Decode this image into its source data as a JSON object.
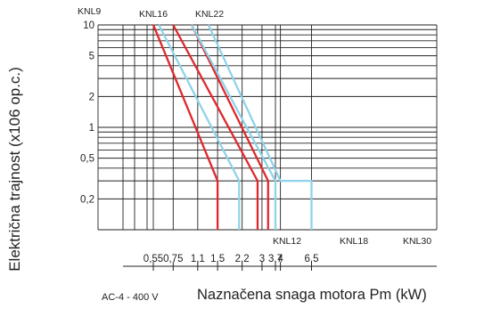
{
  "chart_data": {
    "type": "line",
    "xlabel": "Naznačena snaga motora Pm (kW)",
    "ylabel": "Električna trajnost (x106 op.c.)",
    "condition_label": "AC-4 - 400 V",
    "y_scale": "log",
    "ylim": [
      0.1,
      10
    ],
    "y_tick_labels": [
      "10",
      "5",
      "2",
      "1",
      "0,5",
      "0,2"
    ],
    "x_tick_labels": [
      "0,55",
      "0,75",
      "1,1",
      "1,5",
      "2,2",
      "3",
      "3,7",
      "4",
      "6,5"
    ],
    "grid": true,
    "colors": {
      "red": "#e0282c",
      "blue": "#8fd3ea",
      "grid": "#222222"
    },
    "series": [
      {
        "name": "KNL9",
        "label_position": "top",
        "color": "red",
        "x_at_y10": 0.55,
        "x_at_y0_3": 1.5,
        "x_end": 1.5
      },
      {
        "name": "KNL12",
        "label_position": "bottom",
        "color": "blue",
        "x_at_y10": 0.6,
        "x_at_y0_3": 2.1,
        "x_end": 2.1
      },
      {
        "name": "KNL16",
        "label_position": "top",
        "color": "red",
        "x_at_y10": 0.75,
        "x_at_y0_3": 2.8,
        "x_end": 2.8
      },
      {
        "name": "KNL22",
        "label_position": "top",
        "color": "red",
        "x_at_y10": 1.0,
        "x_at_y0_3": 3.3,
        "x_end": 3.3
      },
      {
        "name": "KNL18",
        "label_position": "bottom",
        "color": "blue",
        "x_at_y10": 1.0,
        "x_at_y0_3": 3.7,
        "x_end": 3.7
      },
      {
        "name": "KNL30",
        "label_position": "bottom",
        "color": "blue",
        "x_at_y10": 1.3,
        "x_at_y0_3": 4.0,
        "x_end": 6.5
      }
    ]
  }
}
